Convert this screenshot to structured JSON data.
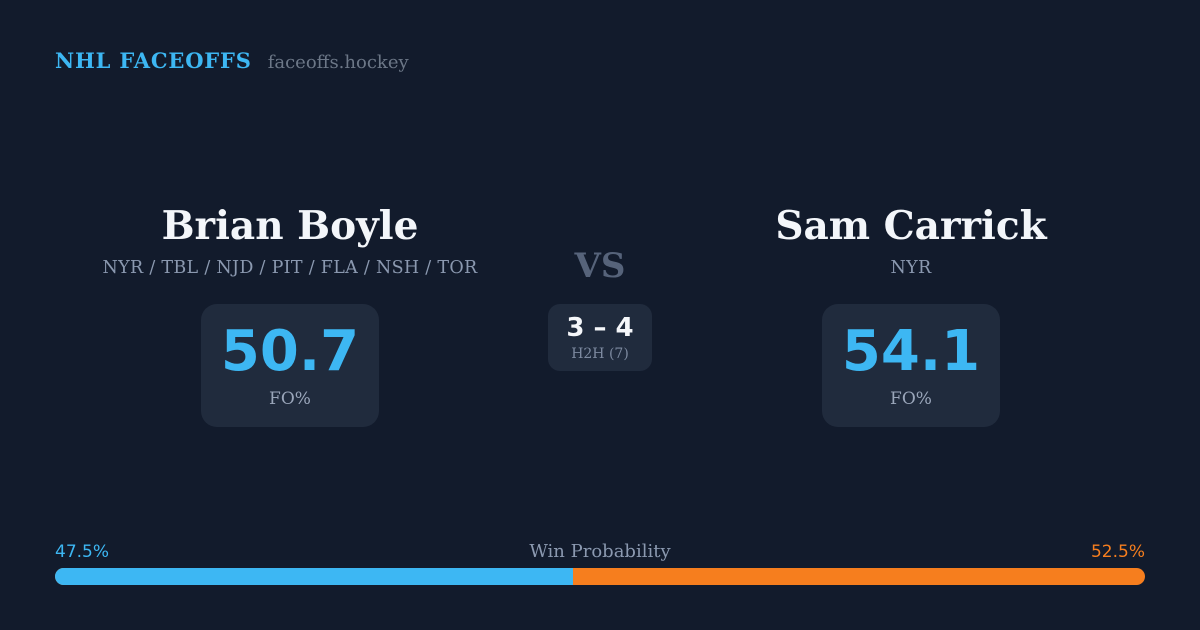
{
  "header": {
    "brand": "NHL FACEOFFS",
    "site": "faceoffs.hockey"
  },
  "matchup": {
    "left_player": {
      "name": "Brian Boyle",
      "teams": "NYR / TBL / NJD / PIT / FLA / NSH / TOR",
      "stat_value": "50.7",
      "stat_label": "FO%"
    },
    "right_player": {
      "name": "Sam Carrick",
      "teams": "NYR",
      "stat_value": "54.1",
      "stat_label": "FO%"
    },
    "vs_label": "VS",
    "h2h": {
      "record": "3 – 4",
      "label": "H2H (7)"
    }
  },
  "win_probability": {
    "title": "Win Probability",
    "left_pct_label": "47.5%",
    "right_pct_label": "52.5%",
    "left_value": 47.5,
    "right_value": 52.5
  },
  "colors": {
    "background": "#121b2c",
    "card": "#202b3d",
    "accent_blue": "#3db7f3",
    "accent_orange": "#f67e1e",
    "name_text": "#f3f6fa",
    "muted_text": "#8b99b0"
  }
}
